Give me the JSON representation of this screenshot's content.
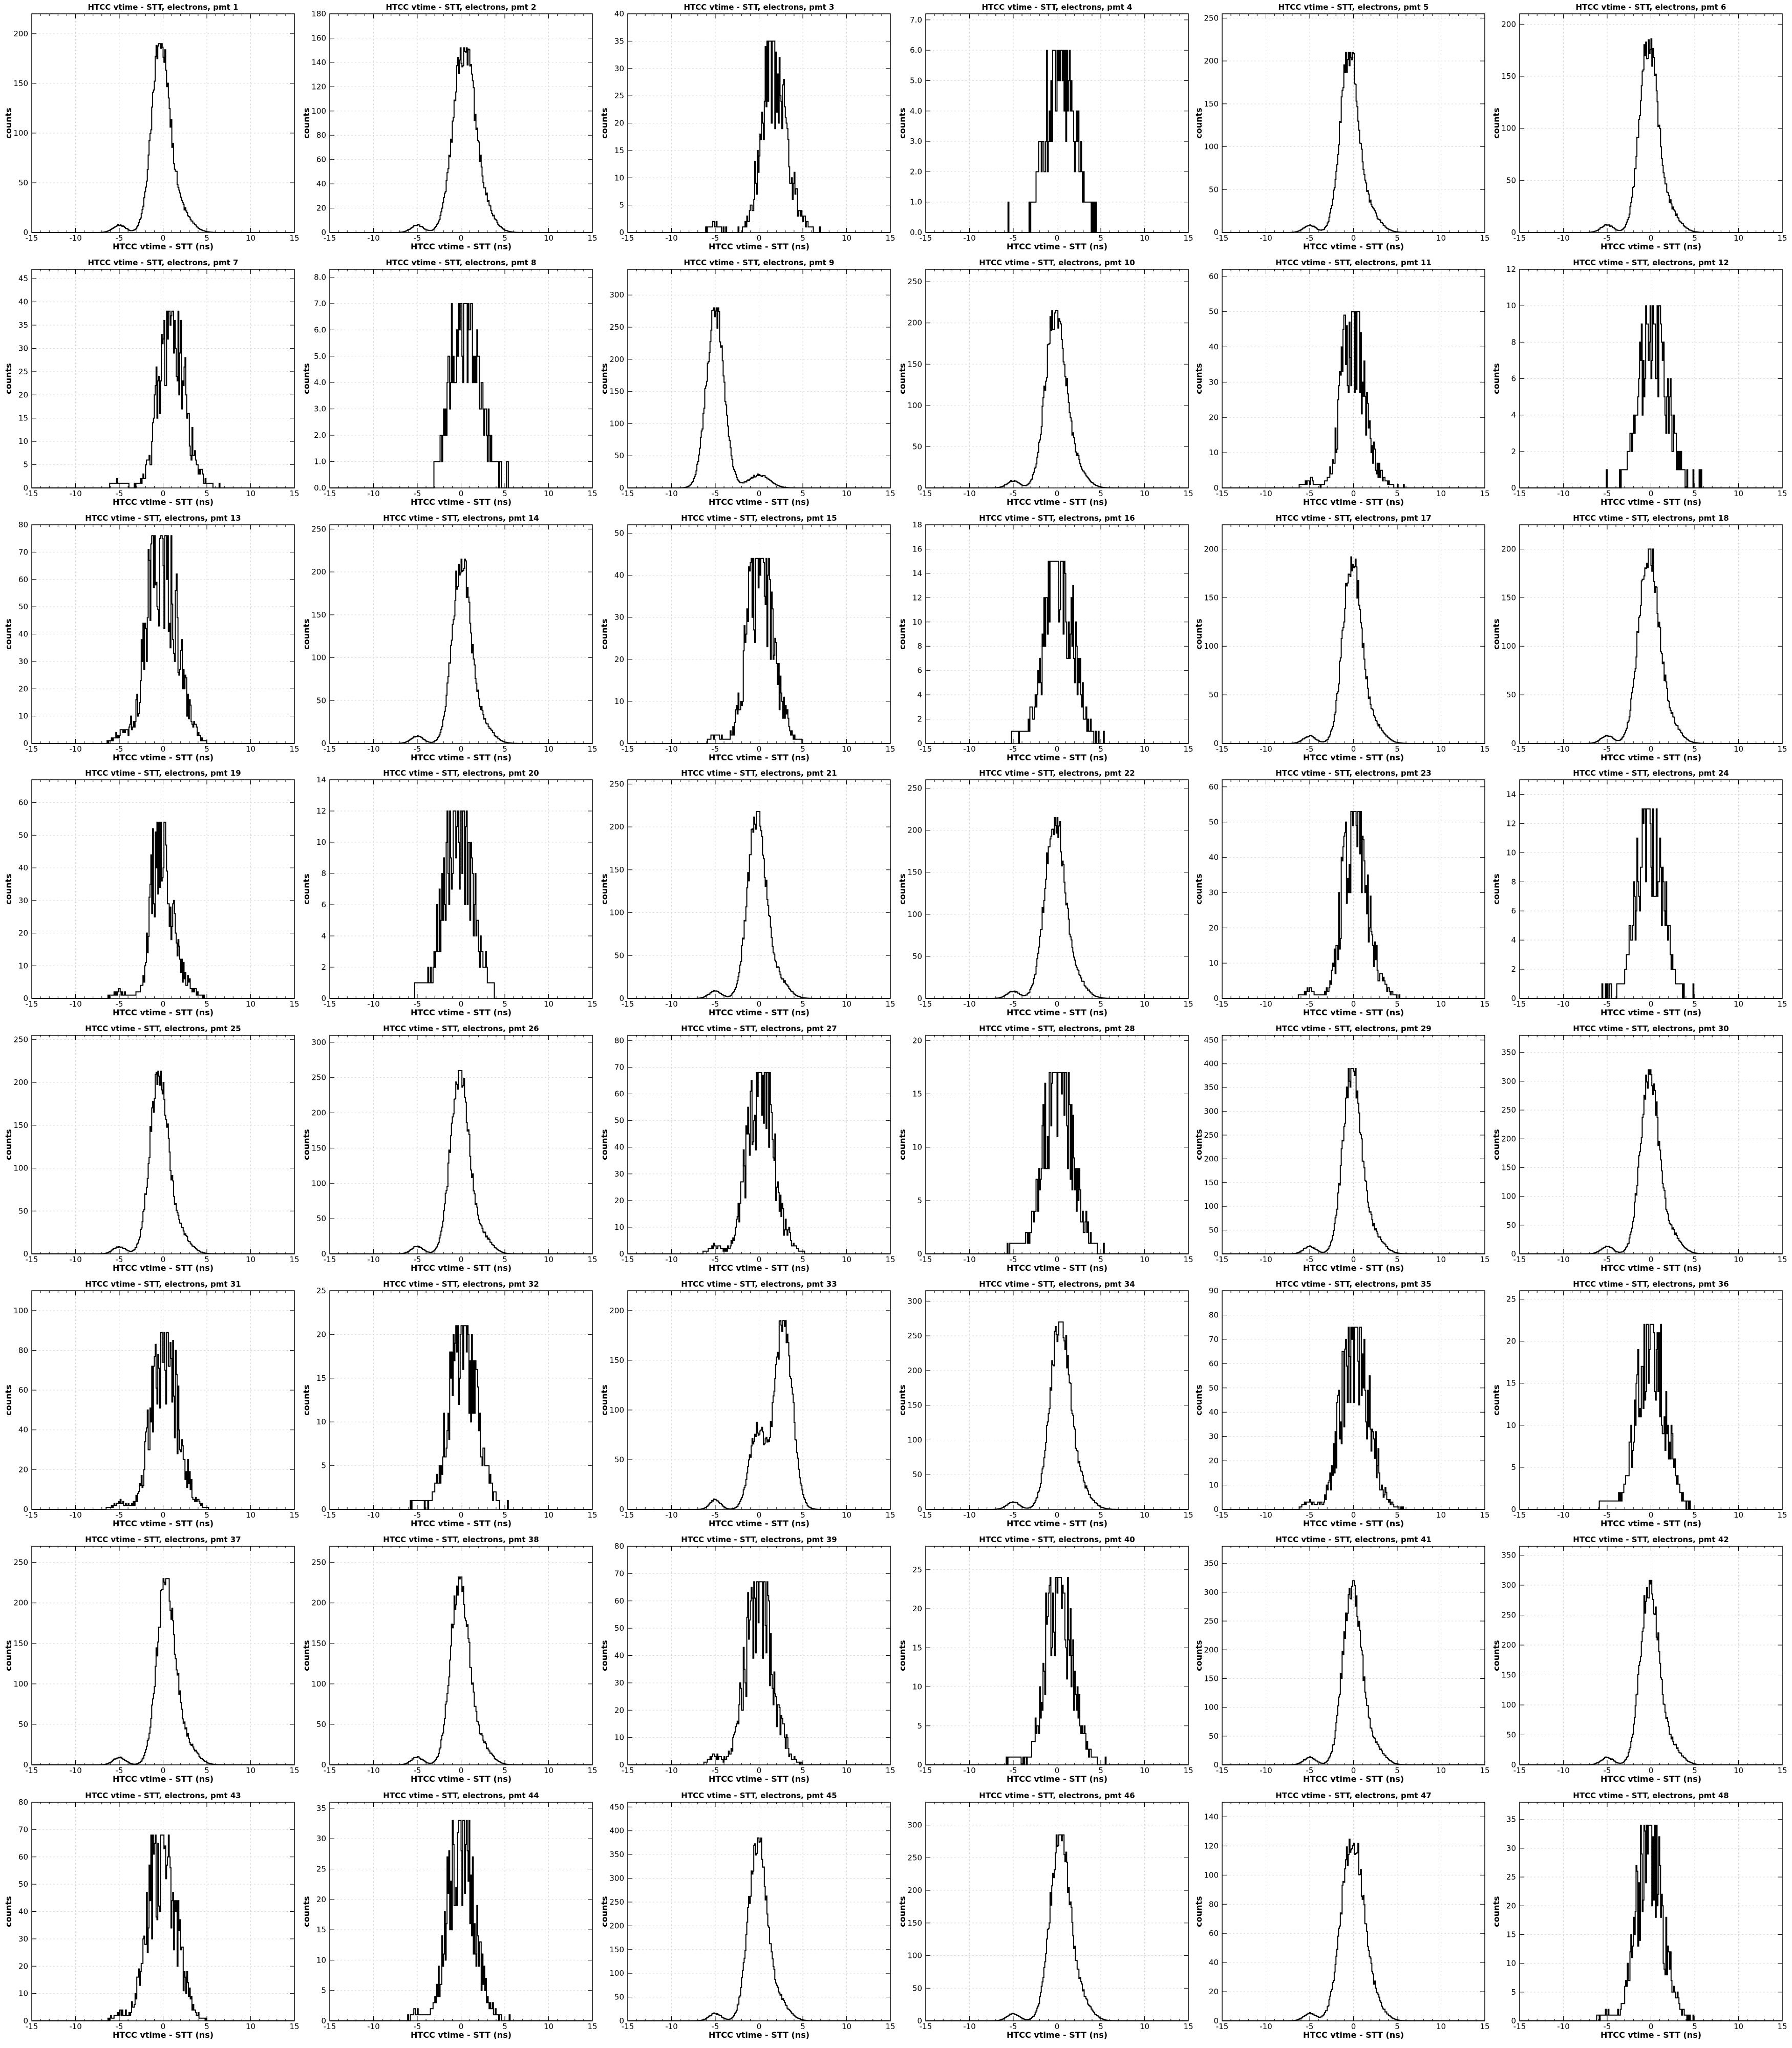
{
  "page": {
    "background": "#ffffff",
    "line_color": "#000000",
    "grid_color": "#d9d9d9"
  },
  "chart_data": {
    "type": "histogram-grid",
    "title_prefix": "HTCC vtime - STT, electrons, pmt",
    "xlabel": "HTCC vtime - STT (ns)",
    "ylabel": "counts",
    "xlim": [
      -15,
      15
    ],
    "x_ticks": [
      -15,
      -10,
      -5,
      0,
      5,
      10,
      15
    ],
    "grid": true,
    "panels": [
      {
        "pmt": 1,
        "title": "HTCC vtime - STT, electrons, pmt 1",
        "ylim": [
          0,
          220
        ],
        "yticks": [
          "0",
          "50",
          "100",
          "150",
          "200"
        ],
        "peak_counts": 190,
        "mean_ns": -0.3,
        "sigma_ns": 1.0,
        "noisy": false
      },
      {
        "pmt": 2,
        "title": "HTCC vtime - STT, electrons, pmt 2",
        "ylim": [
          0,
          180
        ],
        "yticks": [
          "0",
          "20",
          "40",
          "60",
          "80",
          "100",
          "120",
          "140",
          "160",
          "180"
        ],
        "peak_counts": 152,
        "mean_ns": 0.3,
        "sigma_ns": 1.2,
        "noisy": false
      },
      {
        "pmt": 3,
        "title": "HTCC vtime - STT, electrons, pmt 3",
        "ylim": [
          0,
          40
        ],
        "yticks": [
          "0",
          "5",
          "10",
          "15",
          "20",
          "25",
          "30",
          "35",
          "40"
        ],
        "peak_counts": 35,
        "mean_ns": 1.5,
        "sigma_ns": 1.2,
        "noisy": true
      },
      {
        "pmt": 4,
        "title": "HTCC vtime - STT, electrons, pmt 4",
        "ylim": [
          0,
          7.2
        ],
        "yticks": [
          "0.0",
          "1.0",
          "2.0",
          "3.0",
          "4.0",
          "5.0",
          "6.0",
          "7.0"
        ],
        "peak_counts": 6,
        "mean_ns": 0.2,
        "sigma_ns": 1.5,
        "noisy": true
      },
      {
        "pmt": 5,
        "title": "HTCC vtime - STT, electrons, pmt 5",
        "ylim": [
          0,
          255
        ],
        "yticks": [
          "0",
          "50",
          "100",
          "150",
          "200",
          "250"
        ],
        "peak_counts": 210,
        "mean_ns": -0.5,
        "sigma_ns": 1.0,
        "noisy": false
      },
      {
        "pmt": 6,
        "title": "HTCC vtime - STT, electrons, pmt 6",
        "ylim": [
          0,
          210
        ],
        "yticks": [
          "0",
          "50",
          "100",
          "150",
          "200"
        ],
        "peak_counts": 186,
        "mean_ns": -0.3,
        "sigma_ns": 1.0,
        "noisy": false
      },
      {
        "pmt": 7,
        "title": "HTCC vtime - STT, electrons, pmt 7",
        "ylim": [
          0,
          47
        ],
        "yticks": [
          "0",
          "5",
          "10",
          "15",
          "20",
          "25",
          "30",
          "35",
          "40",
          "45"
        ],
        "peak_counts": 38,
        "mean_ns": 0.8,
        "sigma_ns": 1.3,
        "noisy": true
      },
      {
        "pmt": 8,
        "title": "HTCC vtime - STT, electrons, pmt 8",
        "ylim": [
          0,
          8.3
        ],
        "yticks": [
          "0.0",
          "1.0",
          "2.0",
          "3.0",
          "4.0",
          "5.0",
          "6.0",
          "7.0",
          "8.0"
        ],
        "peak_counts": 7,
        "mean_ns": 0.3,
        "sigma_ns": 1.5,
        "noisy": true
      },
      {
        "pmt": 9,
        "title": "HTCC vtime - STT, electrons, pmt 9",
        "ylim": [
          0,
          340
        ],
        "yticks": [
          "0",
          "50",
          "100",
          "150",
          "200",
          "250",
          "300"
        ],
        "peak_counts": 280,
        "mean_ns": -5.0,
        "sigma_ns": 1.0,
        "noisy": false
      },
      {
        "pmt": 10,
        "title": "HTCC vtime - STT, electrons, pmt 10",
        "ylim": [
          0,
          265
        ],
        "yticks": [
          "0",
          "50",
          "100",
          "150",
          "200",
          "250"
        ],
        "peak_counts": 215,
        "mean_ns": -0.2,
        "sigma_ns": 1.1,
        "noisy": false
      },
      {
        "pmt": 11,
        "title": "HTCC vtime - STT, electrons, pmt 11",
        "ylim": [
          0,
          62
        ],
        "yticks": [
          "0",
          "10",
          "20",
          "30",
          "40",
          "50",
          "60"
        ],
        "peak_counts": 50,
        "mean_ns": -0.2,
        "sigma_ns": 1.1,
        "noisy": true
      },
      {
        "pmt": 12,
        "title": "HTCC vtime - STT, electrons, pmt 12",
        "ylim": [
          0,
          12
        ],
        "yticks": [
          "0",
          "2",
          "4",
          "6",
          "8",
          "10",
          "12"
        ],
        "peak_counts": 10,
        "mean_ns": 0.0,
        "sigma_ns": 1.4,
        "noisy": true
      },
      {
        "pmt": 13,
        "title": "HTCC vtime - STT, electrons, pmt 13",
        "ylim": [
          0,
          80
        ],
        "yticks": [
          "0",
          "10",
          "20",
          "30",
          "40",
          "50",
          "60",
          "70",
          "80"
        ],
        "peak_counts": 76,
        "mean_ns": -0.3,
        "sigma_ns": 1.5,
        "noisy": true
      },
      {
        "pmt": 14,
        "title": "HTCC vtime - STT, electrons, pmt 14",
        "ylim": [
          0,
          255
        ],
        "yticks": [
          "0",
          "50",
          "100",
          "150",
          "200",
          "250"
        ],
        "peak_counts": 215,
        "mean_ns": 0.0,
        "sigma_ns": 1.0,
        "noisy": false
      },
      {
        "pmt": 15,
        "title": "HTCC vtime - STT, electrons, pmt 15",
        "ylim": [
          0,
          52
        ],
        "yticks": [
          "0",
          "10",
          "20",
          "30",
          "40",
          "50"
        ],
        "peak_counts": 44,
        "mean_ns": 0.0,
        "sigma_ns": 1.3,
        "noisy": true
      },
      {
        "pmt": 16,
        "title": "HTCC vtime - STT, electrons, pmt 16",
        "ylim": [
          0,
          18
        ],
        "yticks": [
          "0",
          "2",
          "4",
          "6",
          "8",
          "10",
          "12",
          "14",
          "16",
          "18"
        ],
        "peak_counts": 15,
        "mean_ns": 0.0,
        "sigma_ns": 1.5,
        "noisy": true
      },
      {
        "pmt": 17,
        "title": "HTCC vtime - STT, electrons, pmt 17",
        "ylim": [
          0,
          225
        ],
        "yticks": [
          "0",
          "50",
          "100",
          "150",
          "200"
        ],
        "peak_counts": 192,
        "mean_ns": -0.2,
        "sigma_ns": 1.0,
        "noisy": false
      },
      {
        "pmt": 18,
        "title": "HTCC vtime - STT, electrons, pmt 18",
        "ylim": [
          0,
          225
        ],
        "yticks": [
          "0",
          "50",
          "100",
          "150",
          "200"
        ],
        "peak_counts": 200,
        "mean_ns": -0.3,
        "sigma_ns": 1.1,
        "noisy": false
      },
      {
        "pmt": 19,
        "title": "HTCC vtime - STT, electrons, pmt 19",
        "ylim": [
          0,
          67
        ],
        "yticks": [
          "0",
          "10",
          "20",
          "30",
          "40",
          "50",
          "60"
        ],
        "peak_counts": 54,
        "mean_ns": -0.3,
        "sigma_ns": 1.0,
        "noisy": true
      },
      {
        "pmt": 20,
        "title": "HTCC vtime - STT, electrons, pmt 20",
        "ylim": [
          0,
          14
        ],
        "yticks": [
          "0",
          "2",
          "4",
          "6",
          "8",
          "10",
          "12",
          "14"
        ],
        "peak_counts": 12,
        "mean_ns": -0.5,
        "sigma_ns": 1.5,
        "noisy": true
      },
      {
        "pmt": 21,
        "title": "HTCC vtime - STT, electrons, pmt 21",
        "ylim": [
          0,
          255
        ],
        "yticks": [
          "0",
          "50",
          "100",
          "150",
          "200",
          "250"
        ],
        "peak_counts": 218,
        "mean_ns": -0.3,
        "sigma_ns": 1.0,
        "noisy": false
      },
      {
        "pmt": 22,
        "title": "HTCC vtime - STT, electrons, pmt 22",
        "ylim": [
          0,
          260
        ],
        "yticks": [
          "0",
          "50",
          "100",
          "150",
          "200",
          "250"
        ],
        "peak_counts": 215,
        "mean_ns": -0.3,
        "sigma_ns": 1.1,
        "noisy": false
      },
      {
        "pmt": 23,
        "title": "HTCC vtime - STT, electrons, pmt 23",
        "ylim": [
          0,
          62
        ],
        "yticks": [
          "0",
          "10",
          "20",
          "30",
          "40",
          "50",
          "60"
        ],
        "peak_counts": 53,
        "mean_ns": 0.0,
        "sigma_ns": 1.2,
        "noisy": true
      },
      {
        "pmt": 24,
        "title": "HTCC vtime - STT, electrons, pmt 24",
        "ylim": [
          0,
          15
        ],
        "yticks": [
          "0",
          "2",
          "4",
          "6",
          "8",
          "10",
          "12",
          "14"
        ],
        "peak_counts": 13,
        "mean_ns": -0.3,
        "sigma_ns": 1.3,
        "noisy": true
      },
      {
        "pmt": 25,
        "title": "HTCC vtime - STT, electrons, pmt 25",
        "ylim": [
          0,
          255
        ],
        "yticks": [
          "0",
          "50",
          "100",
          "150",
          "200",
          "250"
        ],
        "peak_counts": 213,
        "mean_ns": -0.5,
        "sigma_ns": 1.0,
        "noisy": false
      },
      {
        "pmt": 26,
        "title": "HTCC vtime - STT, electrons, pmt 26",
        "ylim": [
          0,
          310
        ],
        "yticks": [
          "0",
          "50",
          "100",
          "150",
          "200",
          "250",
          "300"
        ],
        "peak_counts": 260,
        "mean_ns": -0.2,
        "sigma_ns": 1.0,
        "noisy": false
      },
      {
        "pmt": 27,
        "title": "HTCC vtime - STT, electrons, pmt 27",
        "ylim": [
          0,
          82
        ],
        "yticks": [
          "0",
          "10",
          "20",
          "30",
          "40",
          "50",
          "60",
          "70",
          "80"
        ],
        "peak_counts": 68,
        "mean_ns": 0.0,
        "sigma_ns": 1.3,
        "noisy": true
      },
      {
        "pmt": 28,
        "title": "HTCC vtime - STT, electrons, pmt 28",
        "ylim": [
          0,
          20.5
        ],
        "yticks": [
          "0",
          "5",
          "10",
          "15",
          "20"
        ],
        "peak_counts": 17,
        "mean_ns": 0.0,
        "sigma_ns": 1.5,
        "noisy": true
      },
      {
        "pmt": 29,
        "title": "HTCC vtime - STT, electrons, pmt 29",
        "ylim": [
          0,
          460
        ],
        "yticks": [
          "0",
          "50",
          "100",
          "150",
          "200",
          "250",
          "300",
          "350",
          "400",
          "450"
        ],
        "peak_counts": 390,
        "mean_ns": -0.2,
        "sigma_ns": 1.0,
        "noisy": false
      },
      {
        "pmt": 30,
        "title": "HTCC vtime - STT, electrons, pmt 30",
        "ylim": [
          0,
          380
        ],
        "yticks": [
          "0",
          "50",
          "100",
          "150",
          "200",
          "250",
          "300",
          "350"
        ],
        "peak_counts": 320,
        "mean_ns": -0.2,
        "sigma_ns": 1.0,
        "noisy": false
      },
      {
        "pmt": 31,
        "title": "HTCC vtime - STT, electrons, pmt 31",
        "ylim": [
          0,
          110
        ],
        "yticks": [
          "0",
          "20",
          "40",
          "60",
          "80",
          "100"
        ],
        "peak_counts": 89,
        "mean_ns": 0.0,
        "sigma_ns": 1.3,
        "noisy": true
      },
      {
        "pmt": 32,
        "title": "HTCC vtime - STT, electrons, pmt 32",
        "ylim": [
          0,
          25
        ],
        "yticks": [
          "0",
          "5",
          "10",
          "15",
          "20",
          "25"
        ],
        "peak_counts": 21,
        "mean_ns": 0.0,
        "sigma_ns": 1.4,
        "noisy": true
      },
      {
        "pmt": 33,
        "title": "HTCC vtime - STT, electrons, pmt 33",
        "ylim": [
          0,
          220
        ],
        "yticks": [
          "0",
          "50",
          "100",
          "150",
          "200"
        ],
        "peak_counts": 190,
        "mean_ns": 2.8,
        "sigma_ns": 1.0,
        "noisy": false
      },
      {
        "pmt": 34,
        "title": "HTCC vtime - STT, electrons, pmt 34",
        "ylim": [
          0,
          315
        ],
        "yticks": [
          "0",
          "50",
          "100",
          "150",
          "200",
          "250",
          "300"
        ],
        "peak_counts": 270,
        "mean_ns": 0.3,
        "sigma_ns": 1.1,
        "noisy": false
      },
      {
        "pmt": 35,
        "title": "HTCC vtime - STT, electrons, pmt 35",
        "ylim": [
          0,
          90
        ],
        "yticks": [
          "0",
          "10",
          "20",
          "30",
          "40",
          "50",
          "60",
          "70",
          "80",
          "90"
        ],
        "peak_counts": 75,
        "mean_ns": 0.0,
        "sigma_ns": 1.4,
        "noisy": true
      },
      {
        "pmt": 36,
        "title": "HTCC vtime - STT, electrons, pmt 36",
        "ylim": [
          0,
          26
        ],
        "yticks": [
          "0",
          "5",
          "10",
          "15",
          "20",
          "25"
        ],
        "peak_counts": 22,
        "mean_ns": -0.2,
        "sigma_ns": 1.4,
        "noisy": true
      },
      {
        "pmt": 37,
        "title": "HTCC vtime - STT, electrons, pmt 37",
        "ylim": [
          0,
          270
        ],
        "yticks": [
          "0",
          "50",
          "100",
          "150",
          "200",
          "250"
        ],
        "peak_counts": 230,
        "mean_ns": 0.3,
        "sigma_ns": 1.0,
        "noisy": false
      },
      {
        "pmt": 38,
        "title": "HTCC vtime - STT, electrons, pmt 38",
        "ylim": [
          0,
          270
        ],
        "yticks": [
          "0",
          "50",
          "100",
          "150",
          "200",
          "250"
        ],
        "peak_counts": 232,
        "mean_ns": -0.2,
        "sigma_ns": 1.0,
        "noisy": false
      },
      {
        "pmt": 39,
        "title": "HTCC vtime - STT, electrons, pmt 39",
        "ylim": [
          0,
          80
        ],
        "yticks": [
          "0",
          "10",
          "20",
          "30",
          "40",
          "50",
          "60",
          "70",
          "80"
        ],
        "peak_counts": 67,
        "mean_ns": -0.2,
        "sigma_ns": 1.3,
        "noisy": true
      },
      {
        "pmt": 40,
        "title": "HTCC vtime - STT, electrons, pmt 40",
        "ylim": [
          0,
          28
        ],
        "yticks": [
          "0",
          "5",
          "10",
          "15",
          "20",
          "25"
        ],
        "peak_counts": 24,
        "mean_ns": 0.0,
        "sigma_ns": 1.3,
        "noisy": true
      },
      {
        "pmt": 41,
        "title": "HTCC vtime - STT, electrons, pmt 41",
        "ylim": [
          0,
          380
        ],
        "yticks": [
          "0",
          "50",
          "100",
          "150",
          "200",
          "250",
          "300",
          "350"
        ],
        "peak_counts": 320,
        "mean_ns": -0.2,
        "sigma_ns": 1.0,
        "noisy": false
      },
      {
        "pmt": 42,
        "title": "HTCC vtime - STT, electrons, pmt 42",
        "ylim": [
          0,
          365
        ],
        "yticks": [
          "0",
          "50",
          "100",
          "150",
          "200",
          "250",
          "300",
          "350"
        ],
        "peak_counts": 308,
        "mean_ns": -0.2,
        "sigma_ns": 1.0,
        "noisy": false
      },
      {
        "pmt": 43,
        "title": "HTCC vtime - STT, electrons, pmt 43",
        "ylim": [
          0,
          80
        ],
        "yticks": [
          "0",
          "10",
          "20",
          "30",
          "40",
          "50",
          "60",
          "70",
          "80"
        ],
        "peak_counts": 68,
        "mean_ns": -0.3,
        "sigma_ns": 1.4,
        "noisy": true
      },
      {
        "pmt": 44,
        "title": "HTCC vtime - STT, electrons, pmt 44",
        "ylim": [
          0,
          36
        ],
        "yticks": [
          "0",
          "5",
          "10",
          "15",
          "20",
          "25",
          "30",
          "35"
        ],
        "peak_counts": 33,
        "mean_ns": -0.2,
        "sigma_ns": 1.3,
        "noisy": true
      },
      {
        "pmt": 45,
        "title": "HTCC vtime - STT, electrons, pmt 45",
        "ylim": [
          0,
          460
        ],
        "yticks": [
          "0",
          "50",
          "100",
          "150",
          "200",
          "250",
          "300",
          "350",
          "400",
          "450"
        ],
        "peak_counts": 385,
        "mean_ns": -0.2,
        "sigma_ns": 1.0,
        "noisy": false
      },
      {
        "pmt": 46,
        "title": "HTCC vtime - STT, electrons, pmt 46",
        "ylim": [
          0,
          335
        ],
        "yticks": [
          "0",
          "50",
          "100",
          "150",
          "200",
          "250",
          "300"
        ],
        "peak_counts": 285,
        "mean_ns": 0.3,
        "sigma_ns": 1.1,
        "noisy": false
      },
      {
        "pmt": 47,
        "title": "HTCC vtime - STT, electrons, pmt 47",
        "ylim": [
          0,
          150
        ],
        "yticks": [
          "0",
          "20",
          "40",
          "60",
          "80",
          "100",
          "120",
          "140"
        ],
        "peak_counts": 127,
        "mean_ns": -0.2,
        "sigma_ns": 1.2,
        "noisy": false
      },
      {
        "pmt": 48,
        "title": "HTCC vtime - STT, electrons, pmt 48",
        "ylim": [
          0,
          38
        ],
        "yticks": [
          "0",
          "5",
          "10",
          "15",
          "20",
          "25",
          "30",
          "35"
        ],
        "peak_counts": 34,
        "mean_ns": -0.3,
        "sigma_ns": 1.3,
        "noisy": true
      }
    ]
  }
}
